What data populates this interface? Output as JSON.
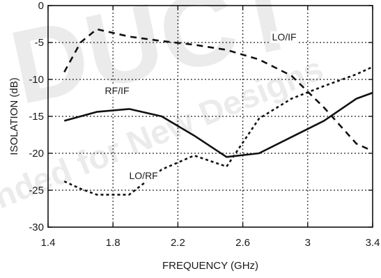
{
  "watermark": {
    "big_text": "DUCT",
    "slogan": "nded for New Designs"
  },
  "chart_data": {
    "type": "line",
    "xlabel": "FREQUENCY (GHz)",
    "ylabel": "ISOLATION (dB)",
    "xlim": [
      1.4,
      3.4
    ],
    "ylim": [
      -30,
      0
    ],
    "x_ticks": [
      1.4,
      1.8,
      2.2,
      2.6,
      3,
      3.4
    ],
    "x_tick_labels": [
      "1.4",
      "1.8",
      "2.2",
      "2.6",
      "3",
      "3.4"
    ],
    "y_ticks": [
      0,
      -5,
      -10,
      -15,
      -20,
      -25,
      -30
    ],
    "y_tick_labels": [
      "0",
      "-5",
      "-10",
      "-15",
      "-20",
      "-25",
      "-30"
    ],
    "grid": true,
    "series": [
      {
        "name": "LO/IF",
        "style": "dashed",
        "x": [
          1.5,
          1.6,
          1.7,
          1.9,
          2.1,
          2.3,
          2.5,
          2.7,
          2.9,
          3.1,
          3.3,
          3.4
        ],
        "y": [
          -9.0,
          -5.0,
          -3.2,
          -4.2,
          -4.8,
          -5.3,
          -6.0,
          -7.3,
          -9.5,
          -13.8,
          -18.7,
          -19.7
        ]
      },
      {
        "name": "RF/IF",
        "style": "solid",
        "x": [
          1.5,
          1.7,
          1.9,
          2.1,
          2.3,
          2.5,
          2.7,
          2.9,
          3.1,
          3.3,
          3.4
        ],
        "y": [
          -15.6,
          -14.4,
          -14.0,
          -15.0,
          -17.6,
          -20.5,
          -20.0,
          -17.8,
          -15.6,
          -12.6,
          -11.8
        ]
      },
      {
        "name": "LO/RF",
        "style": "dotted",
        "x": [
          1.5,
          1.6,
          1.7,
          1.9,
          2.1,
          2.3,
          2.5,
          2.7,
          2.9,
          3.1,
          3.3,
          3.4
        ],
        "y": [
          -23.8,
          -24.8,
          -25.6,
          -25.6,
          -22.2,
          -20.3,
          -21.8,
          -15.3,
          -12.6,
          -10.9,
          -9.3,
          -8.3
        ]
      }
    ],
    "annotations": [
      {
        "text": "LO/IF",
        "x": 2.78,
        "y": -4.7
      },
      {
        "text": "RF/IF",
        "x": 1.75,
        "y": -12.0
      },
      {
        "text": "LO/RF",
        "x": 1.9,
        "y": -23.5
      }
    ]
  }
}
